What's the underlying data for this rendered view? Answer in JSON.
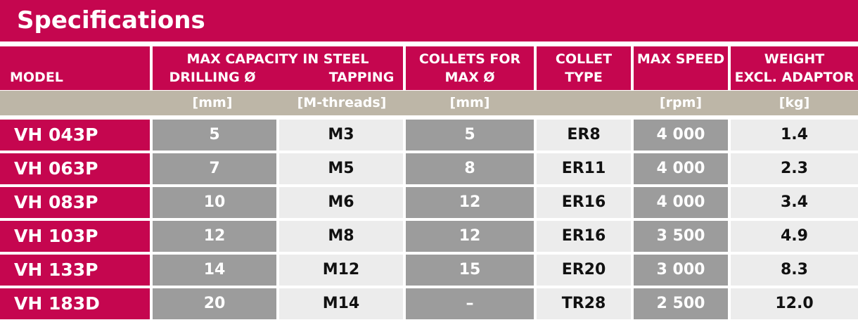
{
  "title": "Specifications",
  "headers": {
    "model": "MODEL",
    "max_capacity": "MAX CAPACITY IN STEEL",
    "drilling": "DRILLING Ø",
    "tapping": "TAPPING",
    "collets_l1": "COLLETS FOR",
    "collets_l2": "MAX Ø",
    "collet_type_l1": "COLLET",
    "collet_type_l2": "TYPE",
    "max_speed": "MAX SPEED",
    "weight_l1": "WEIGHT",
    "weight_l2": "EXCL. ADAPTOR"
  },
  "units": {
    "drilling": "[mm]",
    "tapping": "[M-threads]",
    "collets": "[mm]",
    "speed": "[rpm]",
    "weight": "[kg]"
  },
  "rows": [
    {
      "model": "VH 043P",
      "drilling": "5",
      "tapping": "M3",
      "collets": "5",
      "collet_type": "ER8",
      "speed": "4 000",
      "weight": "1.4"
    },
    {
      "model": "VH 063P",
      "drilling": "7",
      "tapping": "M5",
      "collets": "8",
      "collet_type": "ER11",
      "speed": "4 000",
      "weight": "2.3"
    },
    {
      "model": "VH 083P",
      "drilling": "10",
      "tapping": "M6",
      "collets": "12",
      "collet_type": "ER16",
      "speed": "4 000",
      "weight": "3.4"
    },
    {
      "model": "VH 103P",
      "drilling": "12",
      "tapping": "M8",
      "collets": "12",
      "collet_type": "ER16",
      "speed": "3 500",
      "weight": "4.9"
    },
    {
      "model": "VH 133P",
      "drilling": "14",
      "tapping": "M12",
      "collets": "15",
      "collet_type": "ER20",
      "speed": "3 000",
      "weight": "8.3"
    },
    {
      "model": "VH 183D",
      "drilling": "20",
      "tapping": "M14",
      "collets": "–",
      "collet_type": "TR28",
      "speed": "2 500",
      "weight": "12.0"
    }
  ],
  "colors": {
    "brand": "#c5064f",
    "units_band": "#bdb6a7",
    "dark_cell": "#9c9c9c",
    "light_cell": "#ececec"
  }
}
